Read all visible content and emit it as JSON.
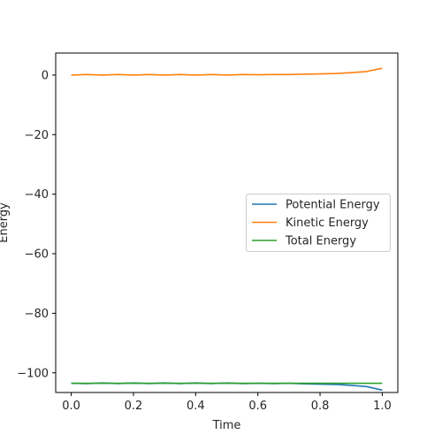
{
  "chart_data": {
    "type": "line",
    "title": "",
    "xlabel": "Time",
    "ylabel": "Energy",
    "xlim": [
      -0.05,
      1.05
    ],
    "ylim": [
      -106.6,
      7.4
    ],
    "x_ticks": [
      0.0,
      0.2,
      0.4,
      0.6,
      0.8,
      1.0
    ],
    "x_tick_labels": [
      "0.0",
      "0.2",
      "0.4",
      "0.6",
      "0.8",
      "1.0"
    ],
    "y_ticks": [
      0,
      -20,
      -40,
      -60,
      -80,
      -100
    ],
    "y_tick_labels": [
      "0",
      "−20",
      "−40",
      "−60",
      "−80",
      "−100"
    ],
    "grid": false,
    "legend_position": "center-right",
    "x": [
      0.0,
      0.05,
      0.1,
      0.15,
      0.2,
      0.25,
      0.3,
      0.35,
      0.4,
      0.45,
      0.5,
      0.55,
      0.6,
      0.65,
      0.7,
      0.75,
      0.8,
      0.85,
      0.9,
      0.95,
      1.0
    ],
    "series": [
      {
        "name": "Potential Energy",
        "color": "#1f77b4",
        "values": [
          -103.5,
          -103.6,
          -103.4,
          -103.6,
          -103.4,
          -103.6,
          -103.4,
          -103.6,
          -103.4,
          -103.6,
          -103.4,
          -103.6,
          -103.5,
          -103.6,
          -103.5,
          -103.7,
          -103.8,
          -103.9,
          -104.2,
          -104.6,
          -105.8
        ]
      },
      {
        "name": "Kinetic Energy",
        "color": "#ff7f0e",
        "values": [
          0.0,
          0.2,
          0.0,
          0.2,
          0.0,
          0.2,
          0.0,
          0.2,
          0.0,
          0.2,
          0.0,
          0.2,
          0.1,
          0.2,
          0.2,
          0.3,
          0.4,
          0.5,
          0.8,
          1.2,
          2.3
        ]
      },
      {
        "name": "Total Energy",
        "color": "#2ca02c",
        "values": [
          -103.5,
          -103.5,
          -103.5,
          -103.5,
          -103.5,
          -103.5,
          -103.5,
          -103.5,
          -103.5,
          -103.5,
          -103.5,
          -103.5,
          -103.5,
          -103.5,
          -103.5,
          -103.5,
          -103.5,
          -103.5,
          -103.5,
          -103.5,
          -103.5
        ]
      }
    ]
  }
}
